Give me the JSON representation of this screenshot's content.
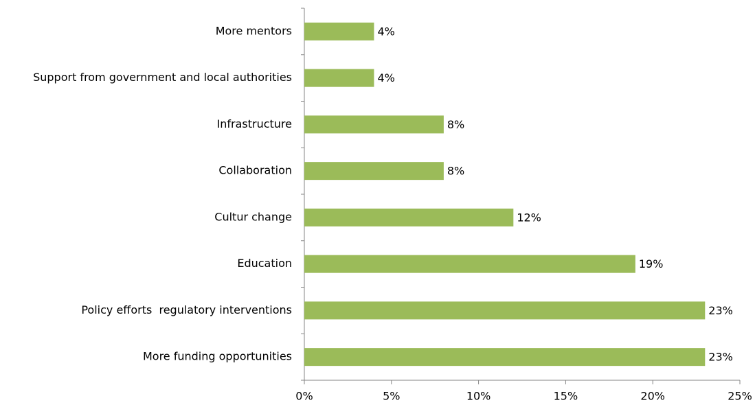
{
  "chart_data": {
    "type": "hbar",
    "categories": [
      "More mentors",
      "Support from government and local authorities",
      "Infrastructure",
      "Collaboration",
      "Cultur change",
      "Education",
      "Policy efforts  regulatory interventions",
      "More funding opportunities"
    ],
    "values": [
      4,
      4,
      8,
      8,
      12,
      19,
      23,
      23
    ],
    "value_labels": [
      "4%",
      "4%",
      "8%",
      "8%",
      "12%",
      "19%",
      "23%",
      "23%"
    ],
    "color": "#9bbb59",
    "xlim": [
      0,
      25
    ],
    "xticks": [
      {
        "value": 0,
        "label": "0%"
      },
      {
        "value": 5,
        "label": "5%"
      },
      {
        "value": 10,
        "label": "10%"
      },
      {
        "value": 15,
        "label": "15%"
      },
      {
        "value": 20,
        "label": "20%"
      },
      {
        "value": 25,
        "label": "25%"
      }
    ],
    "grid": false
  }
}
